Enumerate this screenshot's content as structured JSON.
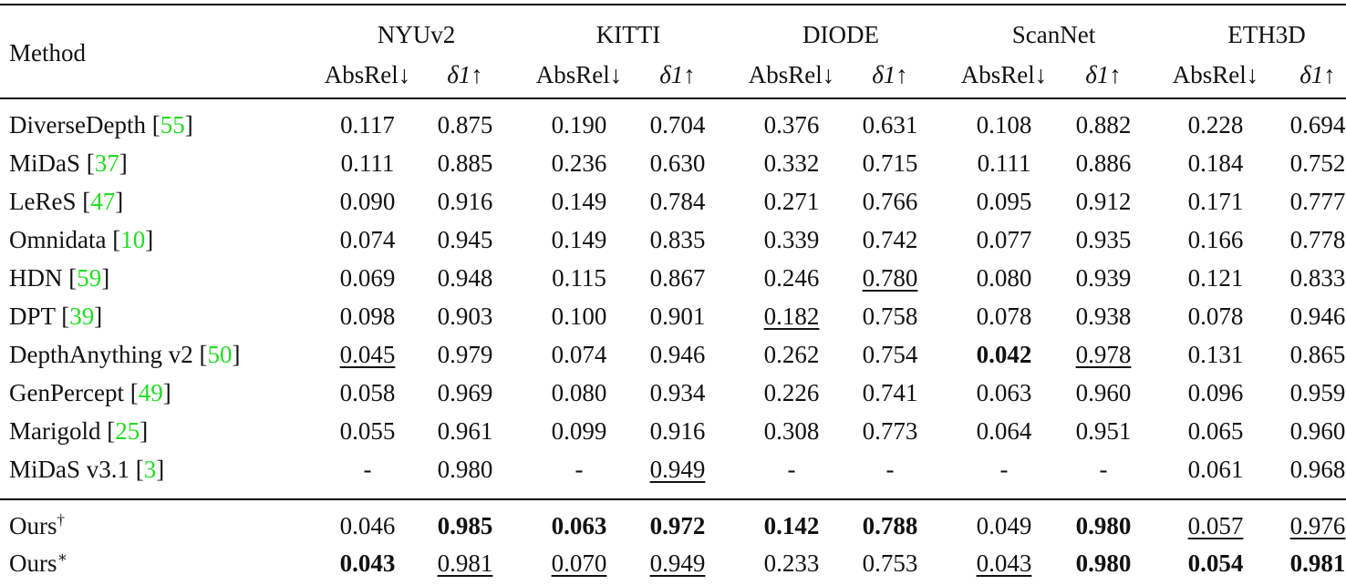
{
  "header": {
    "method": "Method",
    "groups": [
      "NYUv2",
      "KITTI",
      "DIODE",
      "ScanNet",
      "ETH3D"
    ],
    "metrics": [
      "AbsRel↓",
      "δ1↑"
    ]
  },
  "rows": [
    {
      "method": [
        "DiverseDepth [",
        "55",
        "]"
      ],
      "values": [
        "0.117",
        "0.875",
        "0.190",
        "0.704",
        "0.376",
        "0.631",
        "0.108",
        "0.882",
        "0.228",
        "0.694"
      ]
    },
    {
      "method": [
        "MiDaS [",
        "37",
        "]"
      ],
      "values": [
        "0.111",
        "0.885",
        "0.236",
        "0.630",
        "0.332",
        "0.715",
        "0.111",
        "0.886",
        "0.184",
        "0.752"
      ]
    },
    {
      "method": [
        "LeReS [",
        "47",
        "]"
      ],
      "values": [
        "0.090",
        "0.916",
        "0.149",
        "0.784",
        "0.271",
        "0.766",
        "0.095",
        "0.912",
        "0.171",
        "0.777"
      ]
    },
    {
      "method": [
        "Omnidata [",
        "10",
        "]"
      ],
      "values": [
        "0.074",
        "0.945",
        "0.149",
        "0.835",
        "0.339",
        "0.742",
        "0.077",
        "0.935",
        "0.166",
        "0.778"
      ]
    },
    {
      "method": [
        "HDN [",
        "59",
        "]"
      ],
      "values": [
        "0.069",
        "0.948",
        "0.115",
        "0.867",
        "0.246",
        "0.780",
        "0.080",
        "0.939",
        "0.121",
        "0.833"
      ],
      "underline": [
        5
      ]
    },
    {
      "method": [
        "DPT [",
        "39",
        "]"
      ],
      "values": [
        "0.098",
        "0.903",
        "0.100",
        "0.901",
        "0.182",
        "0.758",
        "0.078",
        "0.938",
        "0.078",
        "0.946"
      ],
      "underline": [
        4
      ]
    },
    {
      "method": [
        "DepthAnything v2 [",
        "50",
        "]"
      ],
      "values": [
        "0.045",
        "0.979",
        "0.074",
        "0.946",
        "0.262",
        "0.754",
        "0.042",
        "0.978",
        "0.131",
        "0.865"
      ],
      "underline": [
        0,
        7
      ],
      "bold": [
        6
      ]
    },
    {
      "method": [
        "GenPercept [",
        "49",
        "]"
      ],
      "values": [
        "0.058",
        "0.969",
        "0.080",
        "0.934",
        "0.226",
        "0.741",
        "0.063",
        "0.960",
        "0.096",
        "0.959"
      ]
    },
    {
      "method": [
        "Marigold [",
        "25",
        "]"
      ],
      "values": [
        "0.055",
        "0.961",
        "0.099",
        "0.916",
        "0.308",
        "0.773",
        "0.064",
        "0.951",
        "0.065",
        "0.960"
      ]
    },
    {
      "method": [
        "MiDaS v3.1  [",
        "3",
        "]"
      ],
      "values": [
        "-",
        "0.980",
        "-",
        "0.949",
        "-",
        "-",
        "-",
        "-",
        "0.061",
        "0.968"
      ],
      "underline": [
        3
      ]
    }
  ],
  "ours": [
    {
      "method": "Ours",
      "sup": "†",
      "values": [
        "0.046",
        "0.985",
        "0.063",
        "0.972",
        "0.142",
        "0.788",
        "0.049",
        "0.980",
        "0.057",
        "0.976"
      ],
      "bold": [
        1,
        2,
        3,
        4,
        5,
        7
      ],
      "underline": [
        8,
        9
      ]
    },
    {
      "method": "Ours",
      "sup": "∗",
      "values": [
        "0.043",
        "0.981",
        "0.070",
        "0.949",
        "0.233",
        "0.753",
        "0.043",
        "0.980",
        "0.054",
        "0.981"
      ],
      "bold": [
        0,
        7,
        8,
        9
      ],
      "underline": [
        1,
        2,
        3,
        6
      ]
    }
  ]
}
